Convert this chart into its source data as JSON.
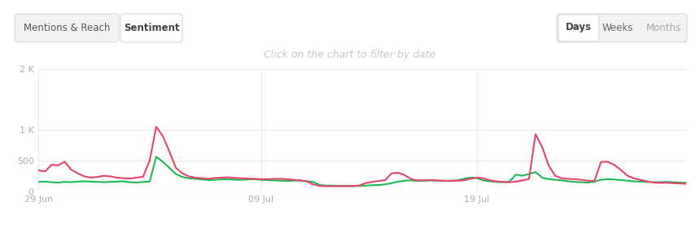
{
  "title_annotation": "Click on the chart to filter by date",
  "tab_labels": [
    "Mentions & Reach",
    "Sentiment"
  ],
  "time_buttons": [
    "Days",
    "Weeks",
    "Months"
  ],
  "x_ticks_labels": [
    "29 Jun",
    "09 Jul",
    "19 Jul"
  ],
  "x_ticks_pos": [
    0,
    34,
    67
  ],
  "y_ticks": [
    "0",
    "500",
    "1 K",
    "2 K"
  ],
  "y_values": [
    0,
    500,
    1000,
    2000
  ],
  "ylim": [
    0,
    2000
  ],
  "xlim": [
    0,
    99
  ],
  "positive_y": [
    150,
    155,
    145,
    140,
    150,
    145,
    155,
    160,
    155,
    150,
    145,
    150,
    155,
    160,
    145,
    140,
    150,
    155,
    560,
    480,
    380,
    280,
    230,
    210,
    200,
    190,
    180,
    185,
    190,
    195,
    185,
    185,
    190,
    195,
    185,
    180,
    175,
    170,
    165,
    170,
    175,
    160,
    150,
    100,
    90,
    90,
    85,
    85,
    80,
    85,
    90,
    95,
    100,
    110,
    130,
    155,
    170,
    175,
    165,
    170,
    175,
    170,
    165,
    170,
    175,
    200,
    220,
    215,
    175,
    160,
    150,
    145,
    155,
    270,
    250,
    280,
    310,
    220,
    195,
    185,
    175,
    160,
    150,
    145,
    140,
    155,
    185,
    195,
    190,
    180,
    170,
    160,
    155,
    150,
    145,
    145,
    150,
    145,
    140,
    135
  ],
  "negative_y": [
    340,
    320,
    430,
    420,
    480,
    350,
    290,
    240,
    220,
    230,
    250,
    240,
    220,
    210,
    205,
    220,
    235,
    500,
    1050,
    900,
    650,
    380,
    290,
    240,
    220,
    210,
    200,
    215,
    220,
    225,
    215,
    210,
    205,
    200,
    195,
    195,
    200,
    200,
    195,
    185,
    175,
    160,
    110,
    85,
    80,
    80,
    80,
    80,
    85,
    90,
    130,
    150,
    165,
    180,
    290,
    300,
    260,
    195,
    175,
    175,
    180,
    175,
    170,
    165,
    170,
    175,
    200,
    220,
    210,
    175,
    160,
    150,
    145,
    155,
    175,
    200,
    930,
    720,
    420,
    250,
    210,
    200,
    195,
    185,
    170,
    165,
    475,
    480,
    430,
    350,
    255,
    210,
    185,
    160,
    140,
    135,
    135,
    130,
    125,
    120
  ],
  "background_color": "#ffffff",
  "grid_color": "#e8e8e8",
  "positive_color": "#1db954",
  "negative_color": "#e8436a",
  "annotation_color": "#c8c8c8",
  "tick_color": "#b0b0b0",
  "tab_bg_inactive": "#f2f2f2",
  "tab_bg_active": "#ffffff",
  "tab_border": "#d8d8d8",
  "figsize": [
    8.6,
    3.02
  ],
  "dpi": 100
}
